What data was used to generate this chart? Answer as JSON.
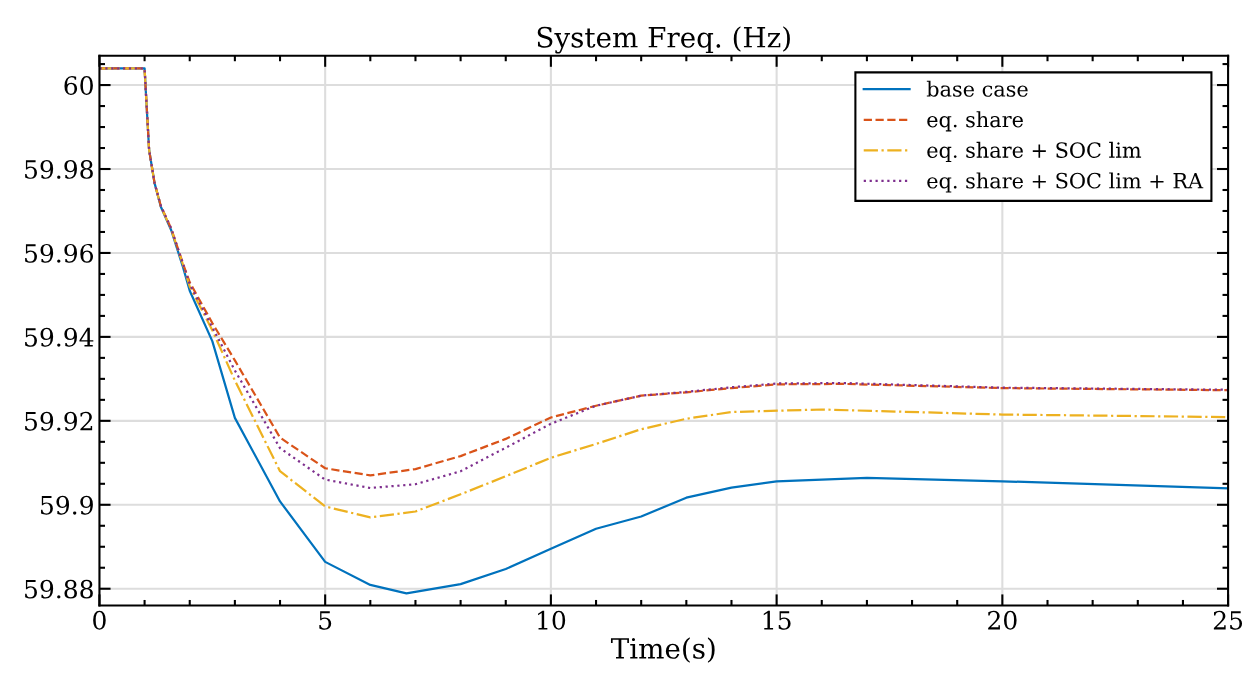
{
  "chart_data": {
    "type": "line",
    "title": "System Freq. (Hz)",
    "xlabel": "Time(s)",
    "xlim": [
      0,
      25
    ],
    "xticks": [
      0,
      5,
      10,
      15,
      20,
      25
    ],
    "ylim": [
      59.876,
      60.007
    ],
    "yticks": [
      59.88,
      59.9,
      59.92,
      59.94,
      59.96,
      59.98,
      60
    ],
    "grid": true,
    "legend": "top right",
    "marker": "none",
    "series": [
      {
        "name": "base case",
        "color": "#0072bd",
        "line_style": "solid",
        "x": [
          0,
          1,
          1.03,
          1.1,
          1.22,
          1.36,
          1.59,
          1.84,
          2,
          2.5,
          3,
          4,
          5,
          6,
          6.8,
          8,
          9,
          10,
          11,
          12,
          13,
          14,
          15,
          17,
          20,
          25
        ],
        "values": [
          60.004,
          60.004,
          59.998,
          59.9846,
          59.9767,
          59.971,
          59.9654,
          59.957,
          59.951,
          59.939,
          59.9207,
          59.9008,
          59.8864,
          59.8809,
          59.8789,
          59.8811,
          59.8847,
          59.8895,
          59.8943,
          59.8972,
          59.9017,
          59.9041,
          59.9056,
          59.9064,
          59.9056,
          59.9039
        ]
      },
      {
        "name": "eq. share",
        "color": "#d95319",
        "line_style": "dashed",
        "x": [
          0,
          1,
          1.03,
          1.1,
          1.22,
          1.36,
          1.59,
          1.84,
          2,
          2.5,
          3,
          4,
          5,
          6,
          7,
          8,
          9,
          10,
          11,
          12,
          13,
          14,
          15,
          16.5,
          20,
          25
        ],
        "values": [
          60.004,
          60.004,
          59.998,
          59.9846,
          59.9767,
          59.9712,
          59.9658,
          59.9578,
          59.953,
          59.9433,
          59.9344,
          59.916,
          59.9087,
          59.907,
          59.9085,
          59.9116,
          59.9157,
          59.9208,
          59.9236,
          59.926,
          59.9268,
          59.9278,
          59.9287,
          59.9288,
          59.9278,
          59.9273
        ]
      },
      {
        "name": "eq. share + SOC lim",
        "color": "#edb120",
        "line_style": "dashdot",
        "x": [
          0,
          1,
          1.03,
          1.1,
          1.22,
          1.36,
          1.59,
          1.84,
          2,
          2.5,
          3,
          4,
          5,
          6,
          7,
          8,
          9,
          10,
          11,
          12,
          13,
          14,
          16,
          20,
          25
        ],
        "values": [
          60.004,
          60.004,
          59.998,
          59.9846,
          59.9767,
          59.9711,
          59.9656,
          59.9576,
          59.952,
          59.9416,
          59.9296,
          59.908,
          59.8996,
          59.897,
          59.8984,
          59.9025,
          59.9068,
          59.9112,
          59.9145,
          59.918,
          59.9205,
          59.9221,
          59.9227,
          59.9215,
          59.9209
        ]
      },
      {
        "name": "eq. share + SOC lim + RA",
        "color": "#7e2f8e",
        "line_style": "dotted",
        "x": [
          0,
          1,
          1.03,
          1.1,
          1.22,
          1.36,
          1.59,
          1.84,
          2,
          2.5,
          3,
          4,
          5,
          6,
          7,
          8,
          9,
          10,
          11,
          12,
          13,
          14,
          15,
          16.5,
          20,
          25
        ],
        "values": [
          60.004,
          60.004,
          59.998,
          59.9846,
          59.9767,
          59.9712,
          59.9658,
          59.9578,
          59.9525,
          59.9423,
          59.932,
          59.9135,
          59.906,
          59.904,
          59.9049,
          59.908,
          59.9136,
          59.9193,
          59.9236,
          59.926,
          59.9269,
          59.928,
          59.9289,
          59.929,
          59.9279,
          59.9274
        ]
      }
    ]
  }
}
